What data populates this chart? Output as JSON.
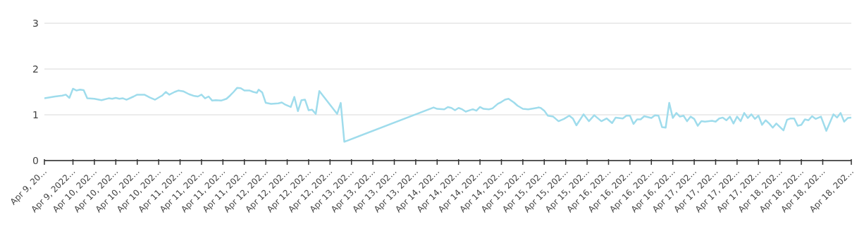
{
  "chart_data": {
    "type": "line",
    "grid": "y",
    "marker": "none",
    "line_style": "solid",
    "ylim": [
      0,
      3
    ],
    "yticks": [
      0,
      1,
      2,
      3
    ],
    "xlim": [
      "2022-04-09T10:00",
      "2022-04-18T20:00"
    ],
    "xticks": [
      {
        "value": "2022-04-09T10:00",
        "label": "Apr 9, 20…"
      },
      {
        "value": "2022-04-09T18:00",
        "label": "Apr 9, 2022…"
      },
      {
        "value": "2022-04-10T00:00",
        "label": "Apr 10, 202…"
      },
      {
        "value": "2022-04-10T06:00",
        "label": "Apr 10, 202…"
      },
      {
        "value": "2022-04-10T12:00",
        "label": "Apr 10, 202…"
      },
      {
        "value": "2022-04-10T18:00",
        "label": "Apr 10, 202…"
      },
      {
        "value": "2022-04-11T00:00",
        "label": "Apr 11, 202…"
      },
      {
        "value": "2022-04-11T06:00",
        "label": "Apr 11, 202…"
      },
      {
        "value": "2022-04-11T12:00",
        "label": "Apr 11, 202…"
      },
      {
        "value": "2022-04-11T18:00",
        "label": "Apr 11, 202…"
      },
      {
        "value": "2022-04-12T00:00",
        "label": "Apr 12, 202…"
      },
      {
        "value": "2022-04-12T06:00",
        "label": "Apr 12, 202…"
      },
      {
        "value": "2022-04-12T12:00",
        "label": "Apr 12, 202…"
      },
      {
        "value": "2022-04-12T18:00",
        "label": "Apr 12, 202…"
      },
      {
        "value": "2022-04-13T00:00",
        "label": "Apr 13, 202…"
      },
      {
        "value": "2022-04-13T06:00",
        "label": "Apr 13, 202…"
      },
      {
        "value": "2022-04-13T12:00",
        "label": "Apr 13, 202…"
      },
      {
        "value": "2022-04-13T18:00",
        "label": "Apr 13, 202…"
      },
      {
        "value": "2022-04-14T00:00",
        "label": "Apr 14, 202…"
      },
      {
        "value": "2022-04-14T06:00",
        "label": "Apr 14, 202…"
      },
      {
        "value": "2022-04-14T12:00",
        "label": "Apr 14, 202…"
      },
      {
        "value": "2022-04-14T18:00",
        "label": "Apr 14, 202…"
      },
      {
        "value": "2022-04-15T00:00",
        "label": "Apr 15, 202…"
      },
      {
        "value": "2022-04-15T06:00",
        "label": "Apr 15, 202…"
      },
      {
        "value": "2022-04-15T12:00",
        "label": "Apr 15, 202…"
      },
      {
        "value": "2022-04-15T18:00",
        "label": "Apr 15, 202…"
      },
      {
        "value": "2022-04-16T00:00",
        "label": "Apr 16, 202…"
      },
      {
        "value": "2022-04-16T06:00",
        "label": "Apr 16, 202…"
      },
      {
        "value": "2022-04-16T12:00",
        "label": "Apr 16, 202…"
      },
      {
        "value": "2022-04-16T18:00",
        "label": "Apr 16, 202…"
      },
      {
        "value": "2022-04-17T00:00",
        "label": "Apr 17, 202…"
      },
      {
        "value": "2022-04-17T06:00",
        "label": "Apr 17, 202…"
      },
      {
        "value": "2022-04-17T12:00",
        "label": "Apr 17, 202…"
      },
      {
        "value": "2022-04-17T18:00",
        "label": "Apr 17, 202…"
      },
      {
        "value": "2022-04-18T00:00",
        "label": "Apr 18, 202…"
      },
      {
        "value": "2022-04-18T06:00",
        "label": "Apr 18, 202…"
      },
      {
        "value": "2022-04-18T12:00",
        "label": "Apr 18, 202…"
      },
      {
        "value": "2022-04-18T20:00",
        "label": "Apr 18, 202…"
      }
    ],
    "x": [
      "2022-04-09T10:00",
      "2022-04-09T13:00",
      "2022-04-09T15:00",
      "2022-04-09T16:00",
      "2022-04-09T17:00",
      "2022-04-09T18:00",
      "2022-04-09T19:00",
      "2022-04-09T20:00",
      "2022-04-09T21:00",
      "2022-04-09T22:00",
      "2022-04-10T00:00",
      "2022-04-10T02:00",
      "2022-04-10T04:00",
      "2022-04-10T05:00",
      "2022-04-10T06:00",
      "2022-04-10T07:00",
      "2022-04-10T08:00",
      "2022-04-10T09:00",
      "2022-04-10T11:00",
      "2022-04-10T12:00",
      "2022-04-10T14:00",
      "2022-04-10T15:30",
      "2022-04-10T17:00",
      "2022-04-10T18:30",
      "2022-04-10T19:00",
      "2022-04-10T20:00",
      "2022-04-10T21:00",
      "2022-04-10T22:30",
      "2022-04-10T23:30",
      "2022-04-11T01:00",
      "2022-04-11T02:30",
      "2022-04-11T04:00",
      "2022-04-11T05:00",
      "2022-04-11T06:00",
      "2022-04-11T07:00",
      "2022-04-11T08:00",
      "2022-04-11T09:00",
      "2022-04-11T10:00",
      "2022-04-11T11:30",
      "2022-04-11T13:00",
      "2022-04-11T14:00",
      "2022-04-11T15:00",
      "2022-04-11T16:00",
      "2022-04-11T17:00",
      "2022-04-11T18:00",
      "2022-04-11T19:30",
      "2022-04-11T20:30",
      "2022-04-11T21:30",
      "2022-04-11T22:00",
      "2022-04-11T23:00",
      "2022-04-12T00:00",
      "2022-04-12T01:30",
      "2022-04-12T03:30",
      "2022-04-12T04:30",
      "2022-04-12T05:30",
      "2022-04-12T07:00",
      "2022-04-12T08:00",
      "2022-04-12T09:00",
      "2022-04-12T10:00",
      "2022-04-12T11:00",
      "2022-04-12T12:00",
      "2022-04-12T13:00",
      "2022-04-12T14:00",
      "2022-04-12T15:00",
      "2022-04-12T20:00",
      "2022-04-12T21:00",
      "2022-04-12T22:00",
      "2022-04-13T23:00",
      "2022-04-14T00:00",
      "2022-04-14T02:00",
      "2022-04-14T03:00",
      "2022-04-14T04:00",
      "2022-04-14T05:00",
      "2022-04-14T06:00",
      "2022-04-14T07:00",
      "2022-04-14T08:00",
      "2022-04-14T09:30",
      "2022-04-14T10:00",
      "2022-04-14T11:00",
      "2022-04-14T12:00",
      "2022-04-14T13:00",
      "2022-04-14T14:30",
      "2022-04-14T15:30",
      "2022-04-14T17:00",
      "2022-04-14T18:00",
      "2022-04-14T19:00",
      "2022-04-14T20:00",
      "2022-04-14T21:30",
      "2022-04-14T22:30",
      "2022-04-15T00:00",
      "2022-04-15T01:30",
      "2022-04-15T03:00",
      "2022-04-15T04:30",
      "2022-04-15T05:00",
      "2022-04-15T06:00",
      "2022-04-15T07:00",
      "2022-04-15T08:30",
      "2022-04-15T10:00",
      "2022-04-15T11:30",
      "2022-04-15T13:00",
      "2022-04-15T14:00",
      "2022-04-15T15:00",
      "2022-04-15T17:00",
      "2022-04-15T18:30",
      "2022-04-15T20:00",
      "2022-04-15T22:00",
      "2022-04-15T23:30",
      "2022-04-16T01:00",
      "2022-04-16T02:00",
      "2022-04-16T04:00",
      "2022-04-16T05:00",
      "2022-04-16T06:00",
      "2022-04-16T07:00",
      "2022-04-16T08:00",
      "2022-04-16T09:00",
      "2022-04-16T10:00",
      "2022-04-16T12:00",
      "2022-04-16T13:00",
      "2022-04-16T14:00",
      "2022-04-16T15:00",
      "2022-04-16T16:00",
      "2022-04-16T17:00",
      "2022-04-16T18:00",
      "2022-04-16T19:00",
      "2022-04-16T20:00",
      "2022-04-16T21:00",
      "2022-04-16T22:00",
      "2022-04-16T23:00",
      "2022-04-17T00:00",
      "2022-04-17T01:00",
      "2022-04-17T02:00",
      "2022-04-17T03:00",
      "2022-04-17T05:00",
      "2022-04-17T06:00",
      "2022-04-17T07:00",
      "2022-04-17T08:00",
      "2022-04-17T09:00",
      "2022-04-17T10:00",
      "2022-04-17T11:00",
      "2022-04-17T12:00",
      "2022-04-17T13:00",
      "2022-04-17T14:00",
      "2022-04-17T15:00",
      "2022-04-17T16:00",
      "2022-04-17T17:00",
      "2022-04-17T18:00",
      "2022-04-17T19:00",
      "2022-04-17T20:00",
      "2022-04-17T21:00",
      "2022-04-17T22:00",
      "2022-04-17T23:00",
      "2022-04-18T01:00",
      "2022-04-18T02:00",
      "2022-04-18T03:00",
      "2022-04-18T04:00",
      "2022-04-18T05:00",
      "2022-04-18T06:00",
      "2022-04-18T07:00",
      "2022-04-18T08:00",
      "2022-04-18T09:00",
      "2022-04-18T10:00",
      "2022-04-18T11:30",
      "2022-04-18T13:00",
      "2022-04-18T15:00",
      "2022-04-18T16:00",
      "2022-04-18T17:00",
      "2022-04-18T18:00",
      "2022-04-18T19:00",
      "2022-04-18T20:00"
    ],
    "series": [
      {
        "color": "#9fdcec",
        "values": [
          1.36,
          1.4,
          1.42,
          1.44,
          1.37,
          1.57,
          1.53,
          1.55,
          1.54,
          1.36,
          1.35,
          1.32,
          1.36,
          1.35,
          1.37,
          1.35,
          1.36,
          1.33,
          1.4,
          1.44,
          1.44,
          1.38,
          1.33,
          1.4,
          1.42,
          1.5,
          1.44,
          1.5,
          1.53,
          1.51,
          1.45,
          1.41,
          1.4,
          1.44,
          1.36,
          1.4,
          1.31,
          1.32,
          1.31,
          1.35,
          1.42,
          1.5,
          1.59,
          1.58,
          1.53,
          1.53,
          1.5,
          1.48,
          1.55,
          1.49,
          1.26,
          1.24,
          1.25,
          1.27,
          1.22,
          1.17,
          1.39,
          1.08,
          1.32,
          1.33,
          1.1,
          1.11,
          1.02,
          1.52,
          1.02,
          1.26,
          0.41,
          1.16,
          1.13,
          1.12,
          1.17,
          1.15,
          1.1,
          1.15,
          1.12,
          1.07,
          1.11,
          1.12,
          1.09,
          1.17,
          1.13,
          1.12,
          1.14,
          1.24,
          1.28,
          1.33,
          1.35,
          1.27,
          1.2,
          1.13,
          1.12,
          1.14,
          1.16,
          1.15,
          1.09,
          0.98,
          0.96,
          0.86,
          0.91,
          0.98,
          0.92,
          0.77,
          1.01,
          0.86,
          0.99,
          0.86,
          0.92,
          0.82,
          0.94,
          0.92,
          0.98,
          0.98,
          0.8,
          0.9,
          0.9,
          0.97,
          0.93,
          0.99,
          0.98,
          0.73,
          0.72,
          1.26,
          0.93,
          1.04,
          0.96,
          0.98,
          0.86,
          0.96,
          0.91,
          0.76,
          0.86,
          0.85,
          0.87,
          0.85,
          0.92,
          0.94,
          0.88,
          0.96,
          0.81,
          0.96,
          0.86,
          1.04,
          0.93,
          1.01,
          0.91,
          0.98,
          0.78,
          0.88,
          0.81,
          0.72,
          0.81,
          0.66,
          0.89,
          0.92,
          0.92,
          0.76,
          0.78,
          0.9,
          0.88,
          0.97,
          0.91,
          0.96,
          0.65,
          1.01,
          0.94,
          1.04,
          0.85,
          0.93,
          0.94
        ]
      }
    ]
  }
}
